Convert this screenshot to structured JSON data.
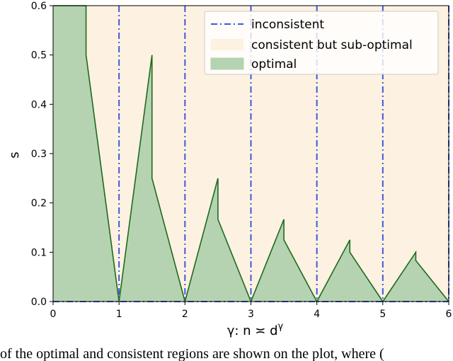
{
  "chart_data": {
    "type": "area",
    "xlabel": "γ: n ≍ d",
    "xlabel_superscript": "γ",
    "ylabel": "s",
    "xlim": [
      0,
      6
    ],
    "ylim": [
      0,
      0.6
    ],
    "xticks": [
      "0",
      "1",
      "2",
      "3",
      "4",
      "5",
      "6"
    ],
    "yticks": [
      "0.0",
      "0.1",
      "0.2",
      "0.3",
      "0.4",
      "0.5",
      "0.6"
    ],
    "legend_position": "top-right",
    "legend": [
      {
        "key": "inconsistent",
        "label": "inconsistent"
      },
      {
        "key": "consistent",
        "label": "consistent but sub-optimal"
      },
      {
        "key": "optimal",
        "label": "optimal"
      }
    ],
    "colors": {
      "consistent_fill": "#fdf1e2",
      "optimal_fill": "#b5d3b1",
      "optimal_line": "#1d6a1d",
      "inconsistent_line": "#3b5bdb"
    },
    "inconsistent_x": [
      1,
      2,
      3,
      4,
      5,
      6
    ],
    "optimal_boundary": [
      [
        0,
        0.6
      ],
      [
        0.5,
        0.6
      ],
      [
        0.5,
        0.5
      ],
      [
        1,
        0
      ],
      [
        1.5,
        0.5
      ],
      [
        1.5,
        0.25
      ],
      [
        2,
        0
      ],
      [
        2.5,
        0.25
      ],
      [
        2.5,
        0.1667
      ],
      [
        3,
        0
      ],
      [
        3.5,
        0.1667
      ],
      [
        3.5,
        0.125
      ],
      [
        4,
        0
      ],
      [
        4.5,
        0.125
      ],
      [
        4.5,
        0.1
      ],
      [
        5,
        0
      ],
      [
        5.5,
        0.1
      ],
      [
        5.5,
        0.0833
      ],
      [
        6,
        0
      ]
    ]
  },
  "caption": "of the optimal and consistent regions are shown on the plot, where ("
}
